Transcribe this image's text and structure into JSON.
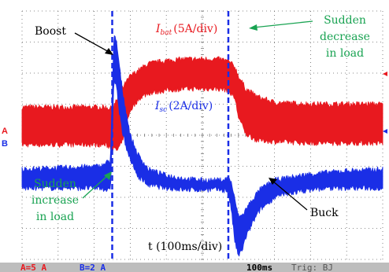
{
  "colors": {
    "battery": "#e8191f",
    "supercap": "#1a2ee6",
    "annotation_green": "#19a352",
    "grid": "#666666",
    "status_bg": "#bdbdbd"
  },
  "chart_data": {
    "type": "line",
    "title": "",
    "xlabel": "t (100ms/div)",
    "ylabel": "",
    "grid": true,
    "time_per_div_ms": 100,
    "x_divisions": 10,
    "y_divisions": 8,
    "xlim": [
      0,
      1000
    ],
    "ylim": [
      -4,
      4
    ],
    "x_unit": "ms",
    "y_unit": "div",
    "cursors_ms": [
      250,
      572
    ],
    "series": [
      {
        "name": "Ibat",
        "label_main": "I",
        "label_sub": "bat",
        "scale": "(5A/div)",
        "color": "#e8191f",
        "x": [
          0,
          230,
          250,
          262,
          275,
          300,
          325,
          350,
          400,
          450,
          500,
          540,
          560,
          572,
          590,
          600,
          620,
          650,
          700,
          800,
          1000
        ],
        "y_upper": [
          0.9,
          0.9,
          0.85,
          1.1,
          1.45,
          1.9,
          2.1,
          2.3,
          2.4,
          2.45,
          2.45,
          2.45,
          2.42,
          2.38,
          2.2,
          1.9,
          1.5,
          1.25,
          1.05,
          1.0,
          1.0
        ],
        "y_lower": [
          -0.3,
          -0.3,
          -0.4,
          -0.5,
          -0.3,
          0.8,
          1.2,
          1.35,
          1.45,
          1.5,
          1.5,
          1.5,
          1.48,
          1.45,
          1.2,
          0.6,
          0.05,
          -0.15,
          -0.2,
          -0.25,
          -0.25
        ]
      },
      {
        "name": "Isc",
        "label_main": "I",
        "label_sub": "sc",
        "scale": "(2A/div)",
        "color": "#1a2ee6",
        "x": [
          0,
          220,
          245,
          255,
          262,
          270,
          280,
          300,
          320,
          350,
          400,
          450,
          500,
          550,
          572,
          580,
          590,
          600,
          610,
          620,
          640,
          660,
          700,
          750,
          800,
          850,
          900,
          1000
        ],
        "y_upper": [
          -1.1,
          -1.0,
          -0.8,
          3.2,
          3.0,
          2.2,
          1.3,
          0.0,
          -0.6,
          -1.1,
          -1.3,
          -1.4,
          -1.45,
          -1.45,
          -1.4,
          -1.5,
          -2.1,
          -2.6,
          -2.6,
          -2.4,
          -2.05,
          -1.75,
          -1.45,
          -1.35,
          -1.25,
          -1.2,
          -1.15,
          -1.1
        ],
        "y_lower": [
          -1.7,
          -1.7,
          -1.8,
          1.8,
          1.6,
          0.7,
          0.0,
          -0.8,
          -1.3,
          -1.6,
          -1.7,
          -1.75,
          -1.75,
          -1.75,
          -1.8,
          -2.4,
          -3.4,
          -3.9,
          -3.7,
          -3.3,
          -2.8,
          -2.4,
          -2.0,
          -1.85,
          -1.75,
          -1.7,
          -1.7,
          -1.7
        ]
      }
    ],
    "annotations": [
      {
        "id": "boost",
        "text": "Boost"
      },
      {
        "id": "buck",
        "text": "Buck"
      },
      {
        "id": "sudden-decrease",
        "lines": [
          "Sudden",
          "decrease",
          "in load"
        ]
      },
      {
        "id": "sudden-increase",
        "lines": [
          "Sudden",
          "increase",
          "in load"
        ]
      }
    ],
    "channel_markers": [
      {
        "channel": "A",
        "color": "#e8191f"
      },
      {
        "channel": "B",
        "color": "#1a2ee6"
      }
    ]
  },
  "status_bar": {
    "ch_a_scale": "A=5 A",
    "ch_b_scale": "B=2 A",
    "timebase": "100ms",
    "trigger": "Trig: BJ"
  }
}
